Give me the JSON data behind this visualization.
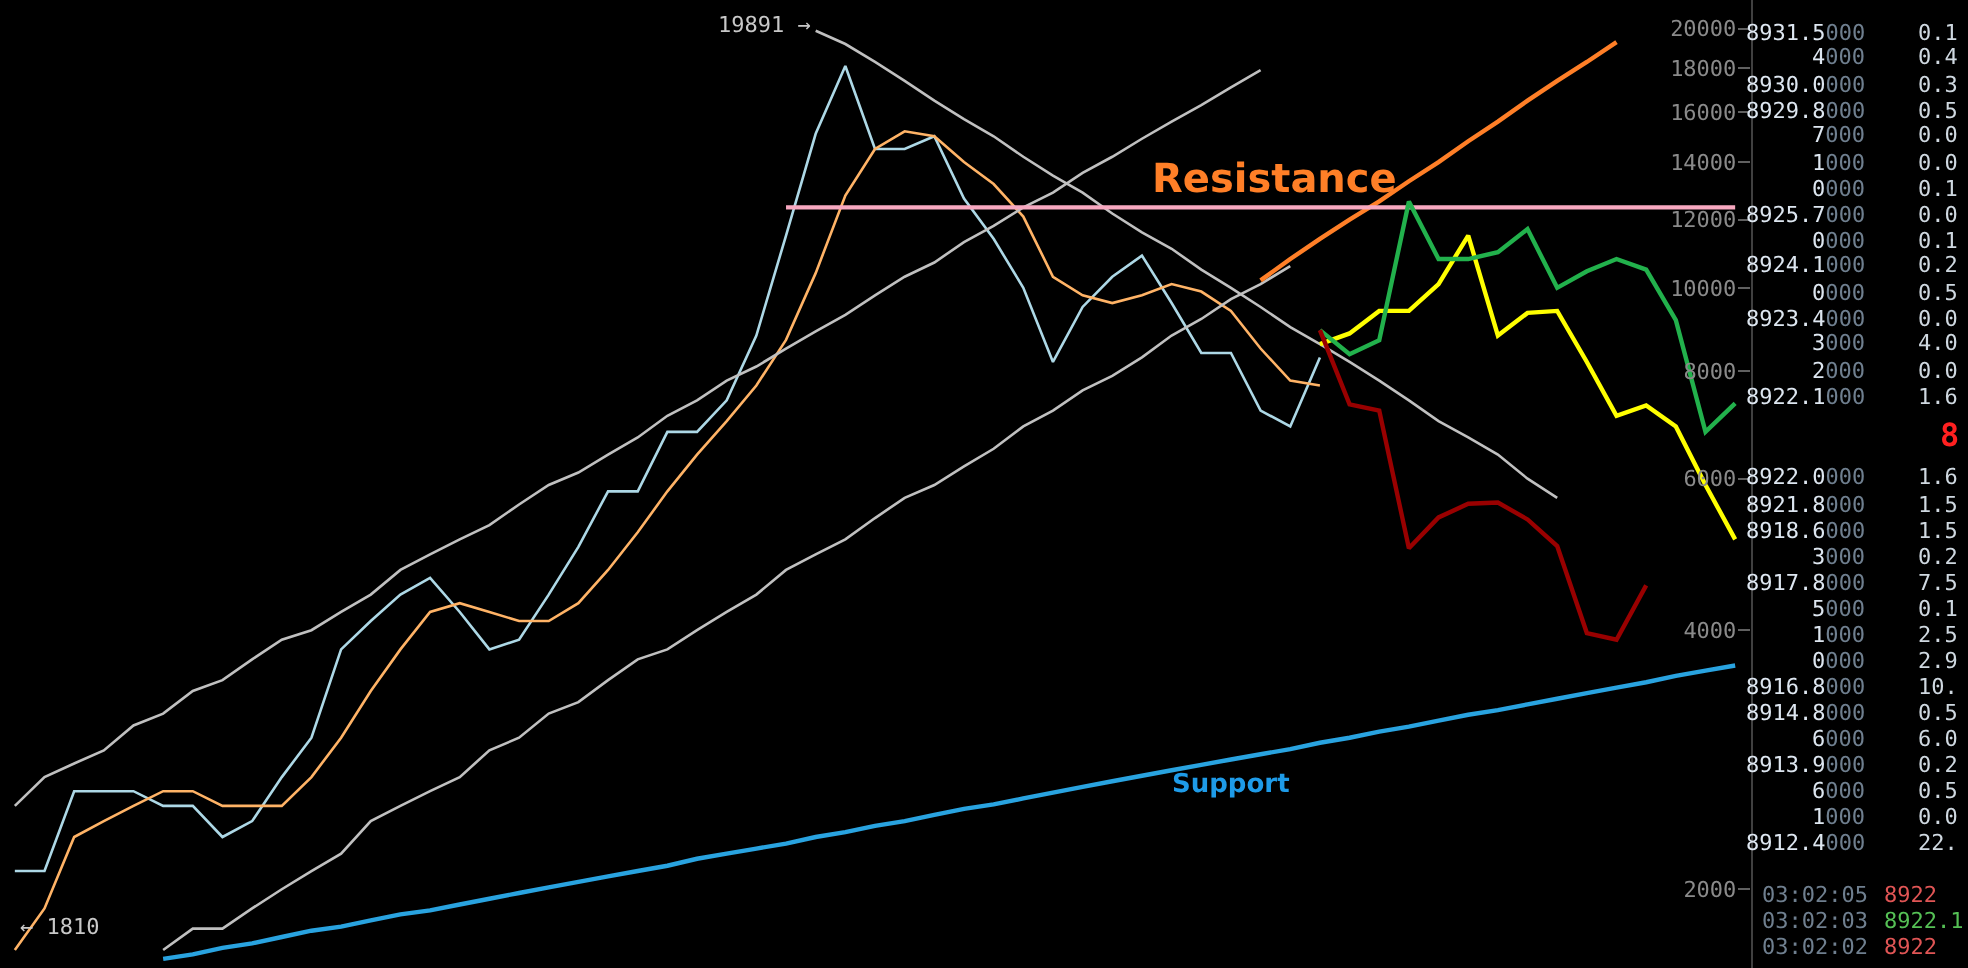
{
  "chart_data": {
    "type": "line",
    "log": "y",
    "grid": false,
    "marker": "none",
    "line_style": "solid",
    "tick_labels": "y",
    "categories": [
      null,
      null,
      null,
      null,
      null,
      null,
      null,
      null,
      null,
      null,
      null,
      null,
      null,
      null,
      null,
      null,
      null,
      null,
      null,
      null,
      null,
      null,
      null,
      null,
      null,
      null,
      null,
      null,
      null,
      null,
      null,
      null,
      null,
      null,
      null,
      null,
      null,
      null,
      null,
      null,
      null,
      null,
      null,
      null,
      null,
      null,
      null,
      null,
      null,
      null,
      null,
      null,
      null,
      null,
      null,
      null,
      null,
      null,
      null
    ],
    "ylim": [
      1620,
      21600
    ],
    "yticks": [
      2000,
      4000,
      6000,
      8000,
      10000,
      12000,
      14000,
      16000,
      18000,
      20000
    ],
    "series": [
      {
        "color": "#add8e6",
        "values": [
          2100,
          2100,
          2600,
          2600,
          2600,
          2500,
          2500,
          2300,
          2400,
          2700,
          3000,
          3800,
          4100,
          4400,
          4600,
          4200,
          3800,
          3900,
          4400,
          5000,
          5800,
          5800,
          6800,
          6800,
          7400,
          8800,
          11500,
          15100,
          18100,
          14500,
          14500,
          15000,
          12700,
          11400,
          10000,
          8200,
          9500,
          10300,
          10900,
          9600,
          8400,
          8400,
          7200,
          6900,
          8300,
          null,
          null,
          null,
          null,
          null,
          null,
          null,
          null,
          null,
          null,
          null,
          null,
          null,
          null
        ]
      },
      {
        "color": "#ffb366",
        "values": [
          1700,
          1900,
          2300,
          2400,
          2500,
          2600,
          2600,
          2500,
          2500,
          2500,
          2700,
          3000,
          3400,
          3800,
          4200,
          4300,
          4200,
          4100,
          4100,
          4300,
          4700,
          5200,
          5800,
          6400,
          7000,
          7700,
          8700,
          10400,
          12800,
          14500,
          15200,
          15000,
          14000,
          13200,
          12100,
          10300,
          9800,
          9600,
          9800,
          10100,
          9900,
          9400,
          8500,
          7800,
          7700,
          null,
          null,
          null,
          null,
          null,
          null,
          null,
          null,
          null,
          null,
          null,
          null,
          null,
          null
        ]
      },
      {
        "color": "#c0c0c0",
        "values": [
          2500,
          2700,
          2800,
          2900,
          3100,
          3200,
          3400,
          3500,
          3700,
          3900,
          4000,
          4200,
          4400,
          4700,
          4900,
          5100,
          5300,
          5600,
          5900,
          6100,
          6400,
          6700,
          7100,
          7400,
          7800,
          8100,
          8500,
          8900,
          9300,
          9800,
          10300,
          10700,
          11300,
          11800,
          12400,
          12900,
          13600,
          14200,
          14900,
          15600,
          16300,
          17100,
          17900,
          null,
          null,
          null,
          null,
          null,
          null,
          null,
          null,
          null,
          null,
          null,
          null,
          null,
          null,
          null,
          null
        ]
      },
      {
        "color": "#c0c0c0",
        "values": [
          null,
          null,
          null,
          null,
          null,
          1700,
          1800,
          1800,
          1900,
          2000,
          2100,
          2200,
          2400,
          2500,
          2600,
          2700,
          2900,
          3000,
          3200,
          3300,
          3500,
          3700,
          3800,
          4000,
          4200,
          4400,
          4700,
          4900,
          5100,
          5400,
          5700,
          5900,
          6200,
          6500,
          6900,
          7200,
          7600,
          7900,
          8300,
          8800,
          9200,
          9700,
          10100,
          10600,
          null,
          null,
          null,
          null,
          null,
          null,
          null,
          null,
          null,
          null,
          null,
          null,
          null,
          null,
          null
        ]
      },
      {
        "color": "#c0c0c0",
        "values": [
          null,
          null,
          null,
          null,
          null,
          null,
          null,
          null,
          null,
          null,
          null,
          null,
          null,
          null,
          null,
          null,
          null,
          null,
          null,
          null,
          null,
          null,
          null,
          null,
          null,
          null,
          null,
          19891,
          19200,
          18300,
          17400,
          16500,
          15700,
          15000,
          14200,
          13500,
          12900,
          12200,
          11600,
          11100,
          10500,
          10000,
          9500,
          9000,
          8600,
          8200,
          7800,
          7400,
          7000,
          6700,
          6400,
          6000,
          5700,
          null,
          null,
          null,
          null,
          null,
          null
        ]
      },
      {
        "color": "#ff7f27",
        "values": [
          null,
          null,
          null,
          null,
          null,
          null,
          null,
          null,
          null,
          null,
          null,
          null,
          null,
          null,
          null,
          null,
          null,
          null,
          null,
          null,
          null,
          null,
          null,
          null,
          null,
          null,
          null,
          null,
          null,
          null,
          null,
          null,
          null,
          null,
          null,
          null,
          null,
          null,
          null,
          null,
          null,
          null,
          10200,
          10800,
          11400,
          12000,
          12600,
          13300,
          14000,
          14800,
          15600,
          16500,
          17400,
          18300,
          19300,
          null,
          null,
          null,
          null
        ]
      },
      {
        "color": "#f7a8c0",
        "values": [
          null,
          null,
          null,
          null,
          null,
          null,
          null,
          null,
          null,
          null,
          null,
          null,
          null,
          null,
          null,
          null,
          null,
          null,
          null,
          null,
          null,
          null,
          null,
          null,
          null,
          null,
          12400,
          12400,
          12400,
          12400,
          12400,
          12400,
          12400,
          12400,
          12400,
          12400,
          12400,
          12400,
          12400,
          12400,
          12400,
          12400,
          12400,
          12400,
          12400,
          12400,
          12400,
          12400,
          12400,
          12400,
          12400,
          12400,
          12400,
          12400,
          12400,
          12400,
          12400,
          12400,
          12400
        ]
      },
      {
        "color": "#29a3e0",
        "values": [
          null,
          null,
          null,
          null,
          null,
          1660,
          1680,
          1710,
          1730,
          1760,
          1790,
          1810,
          1840,
          1870,
          1890,
          1920,
          1950,
          1980,
          2010,
          2040,
          2070,
          2100,
          2130,
          2170,
          2200,
          2230,
          2260,
          2300,
          2330,
          2370,
          2400,
          2440,
          2480,
          2510,
          2550,
          2590,
          2630,
          2670,
          2710,
          2750,
          2790,
          2830,
          2870,
          2910,
          2960,
          3000,
          3050,
          3090,
          3140,
          3190,
          3230,
          3280,
          3330,
          3380,
          3430,
          3480,
          3540,
          3590,
          3640
        ]
      },
      {
        "color": "#ffff00",
        "values": [
          null,
          null,
          null,
          null,
          null,
          null,
          null,
          null,
          null,
          null,
          null,
          null,
          null,
          null,
          null,
          null,
          null,
          null,
          null,
          null,
          null,
          null,
          null,
          null,
          null,
          null,
          null,
          null,
          null,
          null,
          null,
          null,
          null,
          null,
          null,
          null,
          null,
          null,
          null,
          null,
          null,
          null,
          null,
          null,
          8600,
          8850,
          9400,
          9400,
          10100,
          11500,
          8800,
          9350,
          9400,
          8200,
          7100,
          7300,
          6900,
          5900,
          5100
        ]
      },
      {
        "color": "#22b14c",
        "values": [
          null,
          null,
          null,
          null,
          null,
          null,
          null,
          null,
          null,
          null,
          null,
          null,
          null,
          null,
          null,
          null,
          null,
          null,
          null,
          null,
          null,
          null,
          null,
          null,
          null,
          null,
          null,
          null,
          null,
          null,
          null,
          null,
          null,
          null,
          null,
          null,
          null,
          null,
          null,
          null,
          null,
          null,
          null,
          null,
          8930,
          8370,
          8690,
          12600,
          10800,
          10800,
          11000,
          11700,
          10000,
          10450,
          10800,
          10500,
          9170,
          6800,
          7340
        ]
      },
      {
        "color": "#990000",
        "values": [
          null,
          null,
          null,
          null,
          null,
          null,
          null,
          null,
          null,
          null,
          null,
          null,
          null,
          null,
          null,
          null,
          null,
          null,
          null,
          null,
          null,
          null,
          null,
          null,
          null,
          null,
          null,
          null,
          null,
          null,
          null,
          null,
          null,
          null,
          null,
          null,
          null,
          null,
          null,
          null,
          null,
          null,
          null,
          null,
          8930,
          7320,
          7200,
          4980,
          5410,
          5610,
          5630,
          5380,
          5010,
          3970,
          3900,
          4510,
          null,
          null,
          null
        ]
      }
    ],
    "annotations": [
      "19891 →",
      "← 1810",
      "Resistance",
      "Support",
      "8931.5000",
      "0.1",
      "4000",
      "0.4",
      "8930.0000",
      "0.3",
      "8929.8000",
      "0.5",
      "7000",
      "0.0",
      "1000",
      "0.0",
      "0000",
      "0.1",
      "8925.7000",
      "0.0",
      "0000",
      "0.1",
      "8924.1000",
      "0.2",
      "0000",
      "0.5",
      "8923.4000",
      "0.0",
      "3000",
      "4.0",
      "2000",
      "0.0",
      "8922.1000",
      "1.6",
      "8",
      "8922.0000",
      "1.6",
      "8921.8000",
      "1.5",
      "8918.6000",
      "1.5",
      "3000",
      "0.2",
      "8917.8000",
      "7.5",
      "5000",
      "0.1",
      "1000",
      "2.5",
      "0000",
      "2.9",
      "8916.8000",
      "10.",
      "8914.8000",
      "0.5",
      "6000",
      "6.0",
      "8913.9000",
      "0.2",
      "6000",
      "0.5",
      "1000",
      "0.0",
      "8912.4000",
      "22.",
      "03:02:05",
      "8922",
      "03:02:03",
      "8922.1",
      "03:02:02",
      "8922"
    ]
  }
}
